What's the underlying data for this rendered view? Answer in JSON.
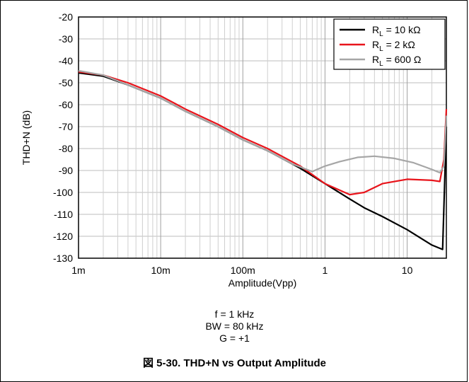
{
  "chart_data": {
    "type": "line",
    "xscale": "log",
    "xlim": [
      0.001,
      30
    ],
    "ylim": [
      -130,
      -20
    ],
    "yticks": [
      -20,
      -30,
      -40,
      -50,
      -60,
      -70,
      -80,
      -90,
      -100,
      -110,
      -120,
      -130
    ],
    "xticks": [
      {
        "value": 0.001,
        "label": "1m"
      },
      {
        "value": 0.01,
        "label": "10m"
      },
      {
        "value": 0.1,
        "label": "100m"
      },
      {
        "value": 1,
        "label": "1"
      },
      {
        "value": 10,
        "label": "10"
      }
    ],
    "xlabel": "Amplitude(Vpp)",
    "ylabel": "THD+N (dB)",
    "grid": true,
    "legend_position": "top-right",
    "series": [
      {
        "name": "RL = 10 kΩ",
        "legend_main": "R",
        "legend_sub": "L",
        "legend_rest": " = 10 kΩ",
        "color": "#000000",
        "points": [
          [
            0.001,
            -45.5
          ],
          [
            0.002,
            -47
          ],
          [
            0.004,
            -51
          ],
          [
            0.01,
            -57
          ],
          [
            0.02,
            -63
          ],
          [
            0.05,
            -70
          ],
          [
            0.1,
            -76
          ],
          [
            0.2,
            -81
          ],
          [
            0.5,
            -89
          ],
          [
            1,
            -96
          ],
          [
            2,
            -103
          ],
          [
            3,
            -107
          ],
          [
            5,
            -111
          ],
          [
            10,
            -117
          ],
          [
            20,
            -124
          ],
          [
            27,
            -126
          ],
          [
            30,
            -70
          ]
        ]
      },
      {
        "name": "RL = 2 kΩ",
        "legend_main": "R",
        "legend_sub": "L",
        "legend_rest": " = 2 kΩ",
        "color": "#e8141b",
        "points": [
          [
            0.001,
            -45
          ],
          [
            0.002,
            -46.5
          ],
          [
            0.004,
            -50
          ],
          [
            0.01,
            -56
          ],
          [
            0.02,
            -62
          ],
          [
            0.05,
            -69
          ],
          [
            0.1,
            -75
          ],
          [
            0.2,
            -80
          ],
          [
            0.5,
            -88
          ],
          [
            1,
            -96
          ],
          [
            2,
            -101
          ],
          [
            3,
            -100
          ],
          [
            5,
            -96
          ],
          [
            10,
            -94
          ],
          [
            20,
            -94.5
          ],
          [
            25,
            -95
          ],
          [
            28,
            -85
          ],
          [
            30,
            -62
          ]
        ]
      },
      {
        "name": "RL = 600 Ω",
        "legend_main": "R",
        "legend_sub": "L",
        "legend_rest": " = 600 Ω",
        "color": "#a6a6a6",
        "points": [
          [
            0.001,
            -44.5
          ],
          [
            0.002,
            -46.5
          ],
          [
            0.004,
            -51
          ],
          [
            0.01,
            -57
          ],
          [
            0.02,
            -63
          ],
          [
            0.05,
            -70
          ],
          [
            0.1,
            -76
          ],
          [
            0.2,
            -81
          ],
          [
            0.4,
            -87
          ],
          [
            0.7,
            -90.5
          ],
          [
            1,
            -88
          ],
          [
            1.5,
            -86
          ],
          [
            2.5,
            -84
          ],
          [
            4,
            -83.5
          ],
          [
            7,
            -84.5
          ],
          [
            12,
            -86.5
          ],
          [
            20,
            -89.5
          ],
          [
            25,
            -91
          ],
          [
            28,
            -88
          ],
          [
            30,
            -65
          ]
        ]
      }
    ]
  },
  "conditions": [
    "f = 1 kHz",
    "BW = 80 kHz",
    "G = +1"
  ],
  "caption": "図 5-30. THD+N vs Output Amplitude"
}
